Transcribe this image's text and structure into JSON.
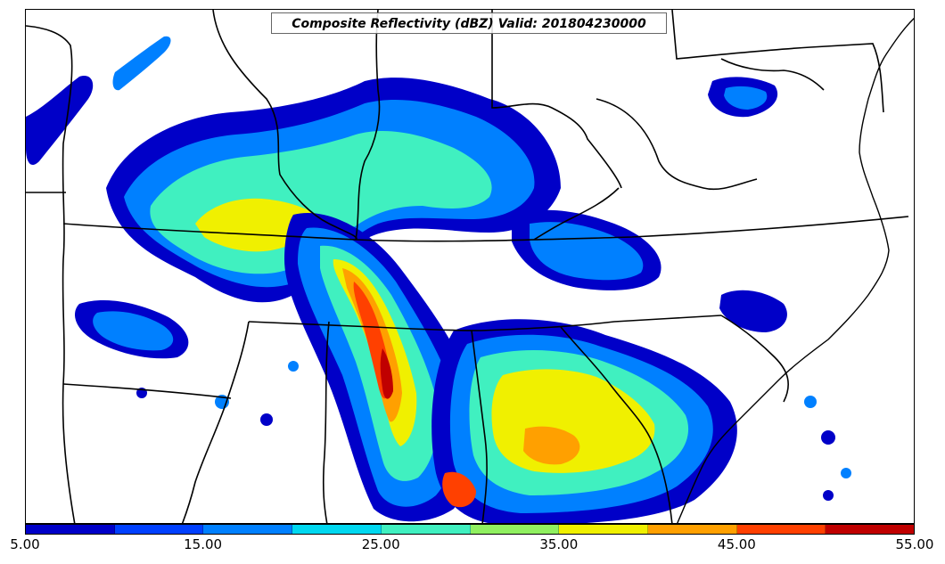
{
  "title": "Composite Reflectivity (dBZ) Valid: 201804230000",
  "colorbar": {
    "colors": [
      "#0000c8",
      "#0040ff",
      "#0080ff",
      "#00d8f0",
      "#40f0c0",
      "#90f060",
      "#f0f000",
      "#ffa000",
      "#ff4000",
      "#c00000"
    ],
    "tick_labels": [
      "5.00",
      "15.00",
      "25.00",
      "35.00",
      "45.00",
      "55.00"
    ]
  },
  "legend_scale": {
    "min": 5,
    "max": 55,
    "step": 5
  }
}
